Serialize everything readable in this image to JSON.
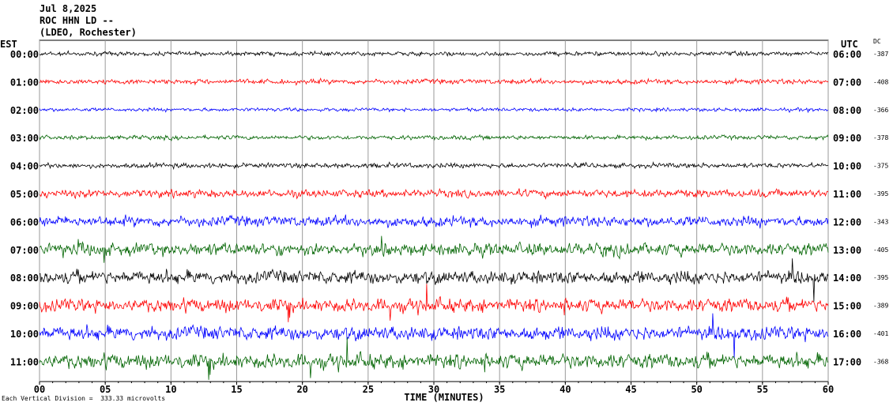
{
  "header": {
    "date": "Jul 8,2025",
    "station": "ROC HHN LD --",
    "source": "(LDEO, Rochester)"
  },
  "axis": {
    "left_title": "EST",
    "right_title": "UTC",
    "dc_title": "DC",
    "xlabel": "TIME (MINUTES)"
  },
  "footer": {
    "scale_note": "Each Vertical Division =  333.33 microvolts"
  },
  "colors": {
    "black": "#000000",
    "red": "#ff0000",
    "blue": "#0000ff",
    "green": "#006400"
  },
  "chart_data": {
    "type": "line",
    "title": "ROC HHN LD --",
    "xlabel": "TIME (MINUTES)",
    "xlim": [
      0,
      60
    ],
    "x_ticks": [
      "00",
      "05",
      "10",
      "15",
      "20",
      "25",
      "30",
      "35",
      "40",
      "45",
      "50",
      "55",
      "60"
    ],
    "grid": true,
    "rows": [
      {
        "est": "00:00",
        "utc": "06:00",
        "dc": "-387",
        "color": "black",
        "noise": 0.12
      },
      {
        "est": "01:00",
        "utc": "07:00",
        "dc": "-408",
        "color": "red",
        "noise": 0.14
      },
      {
        "est": "02:00",
        "utc": "08:00",
        "dc": "-366",
        "color": "blue",
        "noise": 0.1
      },
      {
        "est": "03:00",
        "utc": "09:00",
        "dc": "-378",
        "color": "green",
        "noise": 0.12
      },
      {
        "est": "04:00",
        "utc": "10:00",
        "dc": "-375",
        "color": "black",
        "noise": 0.14
      },
      {
        "est": "05:00",
        "utc": "11:00",
        "dc": "-395",
        "color": "red",
        "noise": 0.22
      },
      {
        "est": "06:00",
        "utc": "12:00",
        "dc": "-343",
        "color": "blue",
        "noise": 0.3
      },
      {
        "est": "07:00",
        "utc": "13:00",
        "dc": "-405",
        "color": "green",
        "noise": 0.35
      },
      {
        "est": "08:00",
        "utc": "14:00",
        "dc": "-395",
        "color": "black",
        "noise": 0.38
      },
      {
        "est": "09:00",
        "utc": "15:00",
        "dc": "-389",
        "color": "red",
        "noise": 0.38
      },
      {
        "est": "10:00",
        "utc": "16:00",
        "dc": "-401",
        "color": "blue",
        "noise": 0.4
      },
      {
        "est": "11:00",
        "utc": "17:00",
        "dc": "-368",
        "color": "green",
        "noise": 0.42
      }
    ]
  }
}
